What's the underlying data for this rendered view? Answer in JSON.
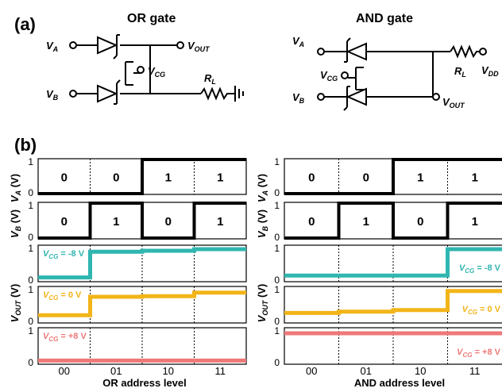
{
  "panel_a": {
    "label": "(a)",
    "or_gate": {
      "title": "OR gate",
      "va_label": "V",
      "va_sub": "A",
      "vb_label": "V",
      "vb_sub": "B",
      "vcg_label": "V",
      "vcg_sub": "CG",
      "vout_label": "V",
      "vout_sub": "OUT",
      "rl_label": "R",
      "rl_sub": "L"
    },
    "and_gate": {
      "title": "AND gate",
      "va_label": "V",
      "va_sub": "A",
      "vb_label": "V",
      "vb_sub": "B",
      "vcg_label": "V",
      "vcg_sub": "CG",
      "vout_label": "V",
      "vout_sub": "OUT",
      "rl_label": "R",
      "rl_sub": "L",
      "vdd_label": "V",
      "vdd_sub": "DD"
    }
  },
  "panel_b": {
    "label": "(b)",
    "ylabel_va": {
      "main": "V",
      "sub": "A",
      "unit": " (V)"
    },
    "ylabel_vb": {
      "main": "V",
      "sub": "B",
      "unit": " (V)"
    },
    "ylabel_vout": {
      "main": "V",
      "sub": "OUT",
      "unit": " (V)"
    },
    "tick_one": "1",
    "tick_zero": "0",
    "categories": [
      "00",
      "01",
      "10",
      "11"
    ],
    "or_xlabel": "OR address level",
    "and_xlabel": "AND address level",
    "va_bits": [
      "0",
      "0",
      "1",
      "1"
    ],
    "vb_bits": [
      "0",
      "1",
      "0",
      "1"
    ],
    "vcg_neg": "V_CG = -8 V",
    "vcg_zero": "V_CG = 0 V",
    "vcg_pos": "V_CG = +8 V"
  },
  "colors": {
    "teal": "#2fb6b0",
    "yellow": "#f2b418",
    "pink": "#ee7878",
    "black": "#000000"
  },
  "chart_data": [
    {
      "type": "line",
      "name": "OR gate",
      "xlabel": "OR address level",
      "categories": [
        "00",
        "01",
        "10",
        "11"
      ],
      "series": [
        {
          "name": "V_A",
          "values": [
            0,
            0,
            1,
            1
          ],
          "ylim": [
            0,
            1
          ]
        },
        {
          "name": "V_B",
          "values": [
            0,
            1,
            0,
            1
          ],
          "ylim": [
            0,
            1
          ]
        },
        {
          "name": "V_CG = -8 V",
          "values": [
            0.06,
            0.87,
            0.9,
            0.95
          ],
          "ylim": [
            0,
            1
          ]
        },
        {
          "name": "V_CG = 0 V",
          "values": [
            0.17,
            0.75,
            0.77,
            0.88
          ],
          "ylim": [
            0,
            1
          ]
        },
        {
          "name": "V_CG = +8 V",
          "values": [
            0.04,
            0.04,
            0.04,
            0.04
          ],
          "ylim": [
            0,
            1
          ]
        }
      ]
    },
    {
      "type": "line",
      "name": "AND gate",
      "xlabel": "AND address level",
      "categories": [
        "00",
        "01",
        "10",
        "11"
      ],
      "series": [
        {
          "name": "V_A",
          "values": [
            0,
            0,
            1,
            1
          ],
          "ylim": [
            0,
            1
          ]
        },
        {
          "name": "V_B",
          "values": [
            0,
            1,
            0,
            1
          ],
          "ylim": [
            0,
            1
          ]
        },
        {
          "name": "V_CG = -8 V",
          "values": [
            0.12,
            0.12,
            0.12,
            0.95
          ],
          "ylim": [
            0,
            1
          ]
        },
        {
          "name": "V_CG = 0 V",
          "values": [
            0.24,
            0.28,
            0.33,
            0.93
          ],
          "ylim": [
            0,
            1
          ]
        },
        {
          "name": "V_CG = +8 V",
          "values": [
            0.9,
            0.9,
            0.9,
            0.9
          ],
          "ylim": [
            0,
            1
          ]
        }
      ]
    }
  ]
}
